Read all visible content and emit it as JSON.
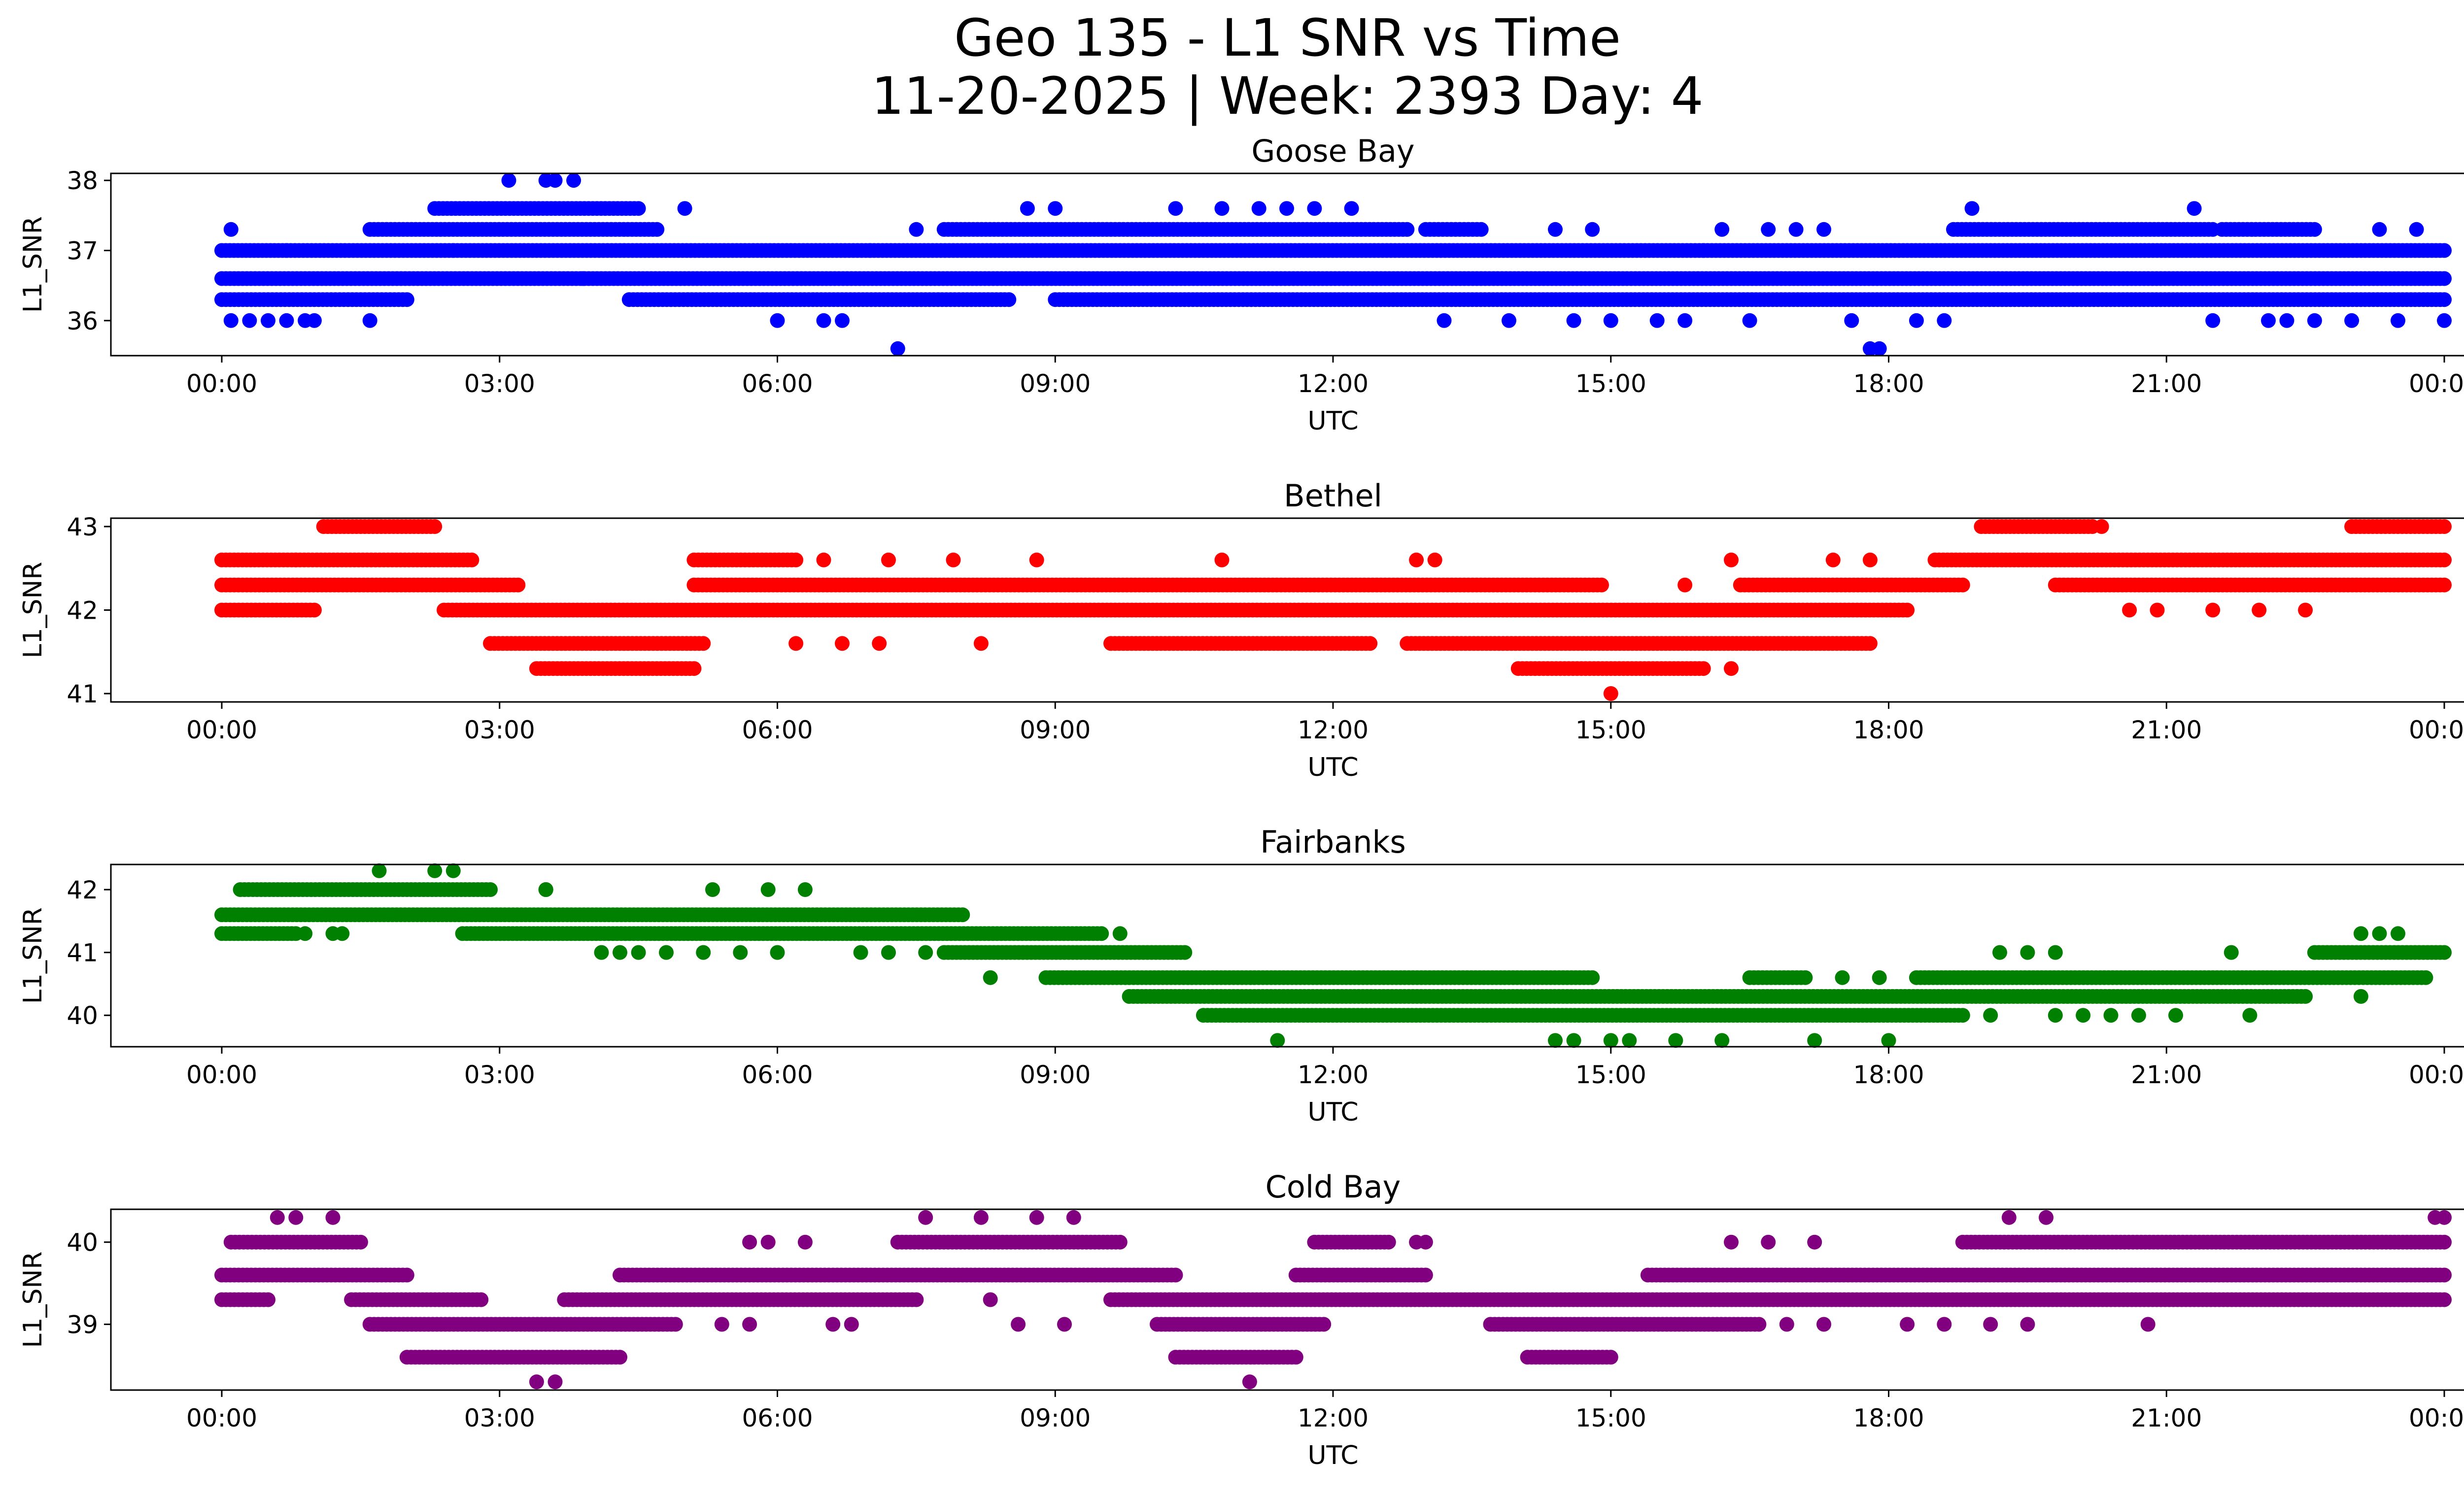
{
  "chart_data": {
    "type": "scatter",
    "title_line1": "Geo 135 - L1 SNR vs Time",
    "title_line2": "11-20-2025 | Week: 2393 Day: 4",
    "xlabel": "UTC",
    "ylabel": "L1_SNR",
    "x_range_hours": [
      0,
      24
    ],
    "x_ticks_hours": [
      0,
      3,
      6,
      9,
      12,
      15,
      18,
      21,
      24
    ],
    "x_tick_labels": [
      "00:00",
      "03:00",
      "06:00",
      "09:00",
      "12:00",
      "15:00",
      "18:00",
      "21:00",
      "00:00"
    ],
    "panels": [
      {
        "name": "Goose Bay",
        "color": "#0000ff",
        "ylim": [
          35.5,
          38.1
        ],
        "y_ticks": [
          36,
          37,
          38
        ],
        "y_tick_labels": [
          "36",
          "37",
          "38"
        ],
        "bands": [
          {
            "y": 37.0,
            "ranges": [
              [
                0.0,
                0.7
              ],
              [
                0.7,
                2.5
              ],
              [
                2.5,
                7.0
              ],
              [
                7.0,
                16.0
              ],
              [
                16.0,
                24.0
              ]
            ]
          },
          {
            "y": 36.6,
            "ranges": [
              [
                0.0,
                24.0
              ]
            ]
          },
          {
            "y": 36.3,
            "ranges": [
              [
                0.0,
                2.0
              ],
              [
                4.4,
                8.5
              ],
              [
                9.0,
                24.0
              ]
            ]
          },
          {
            "y": 37.3,
            "ranges": [
              [
                1.6,
                4.7
              ],
              [
                7.8,
                12.8
              ],
              [
                13.0,
                13.6
              ],
              [
                18.7,
                21.5
              ],
              [
                21.6,
                22.6
              ]
            ]
          },
          {
            "y": 37.6,
            "ranges": [
              [
                2.3,
                4.5
              ]
            ]
          }
        ],
        "points": [
          {
            "x": 0.1,
            "y": 36.0
          },
          {
            "x": 0.3,
            "y": 36.0
          },
          {
            "x": 0.5,
            "y": 36.0
          },
          {
            "x": 0.7,
            "y": 36.0
          },
          {
            "x": 0.9,
            "y": 36.0
          },
          {
            "x": 1.0,
            "y": 36.0
          },
          {
            "x": 1.6,
            "y": 36.0
          },
          {
            "x": 0.1,
            "y": 37.3
          },
          {
            "x": 3.1,
            "y": 38.0
          },
          {
            "x": 3.5,
            "y": 38.0
          },
          {
            "x": 3.6,
            "y": 38.0
          },
          {
            "x": 3.8,
            "y": 38.0
          },
          {
            "x": 3.9,
            "y": 36.6
          },
          {
            "x": 5.0,
            "y": 37.6
          },
          {
            "x": 6.0,
            "y": 36.0
          },
          {
            "x": 6.5,
            "y": 36.0
          },
          {
            "x": 6.7,
            "y": 36.0
          },
          {
            "x": 7.3,
            "y": 35.6
          },
          {
            "x": 7.5,
            "y": 37.3
          },
          {
            "x": 8.7,
            "y": 37.6
          },
          {
            "x": 9.0,
            "y": 37.6
          },
          {
            "x": 10.3,
            "y": 37.6
          },
          {
            "x": 10.8,
            "y": 37.6
          },
          {
            "x": 11.2,
            "y": 37.6
          },
          {
            "x": 11.5,
            "y": 37.6
          },
          {
            "x": 11.8,
            "y": 37.6
          },
          {
            "x": 12.2,
            "y": 37.6
          },
          {
            "x": 13.2,
            "y": 36.0
          },
          {
            "x": 13.9,
            "y": 36.0
          },
          {
            "x": 14.4,
            "y": 37.3
          },
          {
            "x": 14.6,
            "y": 36.0
          },
          {
            "x": 14.8,
            "y": 37.3
          },
          {
            "x": 15.0,
            "y": 36.0
          },
          {
            "x": 15.5,
            "y": 36.0
          },
          {
            "x": 15.8,
            "y": 36.0
          },
          {
            "x": 16.2,
            "y": 37.3
          },
          {
            "x": 16.5,
            "y": 36.0
          },
          {
            "x": 16.7,
            "y": 37.3
          },
          {
            "x": 17.0,
            "y": 37.3
          },
          {
            "x": 17.3,
            "y": 37.3
          },
          {
            "x": 17.6,
            "y": 36.0
          },
          {
            "x": 17.8,
            "y": 35.6
          },
          {
            "x": 17.9,
            "y": 35.6
          },
          {
            "x": 18.3,
            "y": 36.0
          },
          {
            "x": 18.6,
            "y": 36.0
          },
          {
            "x": 18.9,
            "y": 37.6
          },
          {
            "x": 21.3,
            "y": 37.6
          },
          {
            "x": 21.5,
            "y": 36.0
          },
          {
            "x": 22.1,
            "y": 36.0
          },
          {
            "x": 22.3,
            "y": 36.0
          },
          {
            "x": 22.6,
            "y": 36.0
          },
          {
            "x": 23.0,
            "y": 36.0
          },
          {
            "x": 23.3,
            "y": 37.3
          },
          {
            "x": 23.5,
            "y": 36.0
          },
          {
            "x": 23.7,
            "y": 37.3
          },
          {
            "x": 24.0,
            "y": 36.0
          }
        ]
      },
      {
        "name": "Bethel",
        "color": "#ff0000",
        "ylim": [
          40.9,
          43.1
        ],
        "y_ticks": [
          41,
          42,
          43
        ],
        "y_tick_labels": [
          "41",
          "42",
          "43"
        ],
        "bands": [
          {
            "y": 42.3,
            "ranges": [
              [
                0.0,
                3.2
              ],
              [
                5.1,
                14.9
              ],
              [
                16.4,
                18.8
              ],
              [
                19.8,
                24.0
              ]
            ]
          },
          {
            "y": 42.0,
            "ranges": [
              [
                0.0,
                1.0
              ],
              [
                2.4,
                18.2
              ]
            ]
          },
          {
            "y": 42.6,
            "ranges": [
              [
                0.0,
                0.8
              ],
              [
                0.8,
                2.7
              ],
              [
                5.1,
                6.2
              ],
              [
                18.5,
                24.0
              ]
            ]
          },
          {
            "y": 43.0,
            "ranges": [
              [
                1.1,
                2.3
              ],
              [
                19.0,
                20.2
              ],
              [
                23.0,
                24.0
              ]
            ]
          },
          {
            "y": 41.6,
            "ranges": [
              [
                2.9,
                5.2
              ],
              [
                9.6,
                12.4
              ],
              [
                12.8,
                17.8
              ]
            ]
          },
          {
            "y": 41.3,
            "ranges": [
              [
                3.4,
                5.1
              ],
              [
                14.0,
                16.0
              ]
            ]
          }
        ],
        "points": [
          {
            "x": 15.0,
            "y": 41.0
          },
          {
            "x": 6.2,
            "y": 41.6
          },
          {
            "x": 6.7,
            "y": 41.6
          },
          {
            "x": 7.1,
            "y": 41.6
          },
          {
            "x": 8.2,
            "y": 41.6
          },
          {
            "x": 6.5,
            "y": 42.6
          },
          {
            "x": 7.2,
            "y": 42.6
          },
          {
            "x": 7.9,
            "y": 42.6
          },
          {
            "x": 8.8,
            "y": 42.6
          },
          {
            "x": 10.8,
            "y": 42.6
          },
          {
            "x": 12.9,
            "y": 42.6
          },
          {
            "x": 13.1,
            "y": 42.6
          },
          {
            "x": 15.8,
            "y": 42.3
          },
          {
            "x": 16.3,
            "y": 42.6
          },
          {
            "x": 16.3,
            "y": 41.3
          },
          {
            "x": 17.4,
            "y": 42.6
          },
          {
            "x": 17.8,
            "y": 42.6
          },
          {
            "x": 20.3,
            "y": 43.0
          },
          {
            "x": 20.6,
            "y": 42.0
          },
          {
            "x": 20.9,
            "y": 42.0
          },
          {
            "x": 21.5,
            "y": 42.0
          },
          {
            "x": 22.0,
            "y": 42.0
          },
          {
            "x": 22.5,
            "y": 42.0
          }
        ]
      },
      {
        "name": "Fairbanks",
        "color": "#008000",
        "ylim": [
          39.5,
          42.4
        ],
        "y_ticks": [
          40,
          41,
          42
        ],
        "y_tick_labels": [
          "40",
          "41",
          "42"
        ],
        "bands": [
          {
            "y": 41.6,
            "ranges": [
              [
                0.0,
                8.0
              ]
            ]
          },
          {
            "y": 41.3,
            "ranges": [
              [
                0.0,
                0.8
              ],
              [
                2.6,
                9.5
              ]
            ]
          },
          {
            "y": 42.0,
            "ranges": [
              [
                0.2,
                2.9
              ],
              [
                3.5,
                3.5
              ]
            ]
          },
          {
            "y": 41.0,
            "ranges": [
              [
                7.8,
                10.4
              ],
              [
                22.6,
                24.0
              ]
            ]
          },
          {
            "y": 40.6,
            "ranges": [
              [
                8.9,
                14.8
              ],
              [
                16.5,
                17.1
              ],
              [
                18.3,
                23.8
              ]
            ]
          },
          {
            "y": 40.3,
            "ranges": [
              [
                9.8,
                22.5
              ]
            ]
          },
          {
            "y": 40.0,
            "ranges": [
              [
                10.6,
                18.8
              ]
            ]
          }
        ],
        "points": [
          {
            "x": 1.7,
            "y": 42.3
          },
          {
            "x": 2.3,
            "y": 42.3
          },
          {
            "x": 2.5,
            "y": 42.3
          },
          {
            "x": 0.9,
            "y": 41.3
          },
          {
            "x": 1.2,
            "y": 41.3
          },
          {
            "x": 1.3,
            "y": 41.3
          },
          {
            "x": 3.5,
            "y": 42.0
          },
          {
            "x": 5.3,
            "y": 42.0
          },
          {
            "x": 5.9,
            "y": 42.0
          },
          {
            "x": 6.3,
            "y": 42.0
          },
          {
            "x": 4.1,
            "y": 41.0
          },
          {
            "x": 4.3,
            "y": 41.0
          },
          {
            "x": 4.5,
            "y": 41.0
          },
          {
            "x": 4.8,
            "y": 41.0
          },
          {
            "x": 5.2,
            "y": 41.0
          },
          {
            "x": 5.6,
            "y": 41.0
          },
          {
            "x": 6.0,
            "y": 41.0
          },
          {
            "x": 6.9,
            "y": 41.0
          },
          {
            "x": 7.2,
            "y": 41.0
          },
          {
            "x": 7.6,
            "y": 41.0
          },
          {
            "x": 8.3,
            "y": 40.6
          },
          {
            "x": 9.7,
            "y": 41.3
          },
          {
            "x": 11.4,
            "y": 39.6
          },
          {
            "x": 14.4,
            "y": 39.6
          },
          {
            "x": 14.6,
            "y": 39.6
          },
          {
            "x": 15.0,
            "y": 39.6
          },
          {
            "x": 15.2,
            "y": 39.6
          },
          {
            "x": 15.7,
            "y": 39.6
          },
          {
            "x": 16.2,
            "y": 39.6
          },
          {
            "x": 17.2,
            "y": 39.6
          },
          {
            "x": 18.0,
            "y": 39.6
          },
          {
            "x": 17.5,
            "y": 40.6
          },
          {
            "x": 17.9,
            "y": 40.6
          },
          {
            "x": 19.2,
            "y": 41.0
          },
          {
            "x": 19.5,
            "y": 41.0
          },
          {
            "x": 19.8,
            "y": 41.0
          },
          {
            "x": 19.1,
            "y": 40.0
          },
          {
            "x": 19.8,
            "y": 40.0
          },
          {
            "x": 20.1,
            "y": 40.0
          },
          {
            "x": 20.4,
            "y": 40.0
          },
          {
            "x": 20.7,
            "y": 40.0
          },
          {
            "x": 21.1,
            "y": 40.0
          },
          {
            "x": 21.7,
            "y": 41.0
          },
          {
            "x": 21.9,
            "y": 40.0
          },
          {
            "x": 23.1,
            "y": 41.3
          },
          {
            "x": 23.1,
            "y": 40.3
          },
          {
            "x": 23.3,
            "y": 41.3
          },
          {
            "x": 23.5,
            "y": 41.3
          }
        ]
      },
      {
        "name": "Cold Bay",
        "color": "#800080",
        "ylim": [
          38.2,
          40.4
        ],
        "y_ticks": [
          39,
          40
        ],
        "y_tick_labels": [
          "39",
          "40"
        ],
        "bands": [
          {
            "y": 39.6,
            "ranges": [
              [
                0.0,
                2.0
              ],
              [
                4.3,
                10.3
              ],
              [
                11.6,
                13.0
              ],
              [
                15.4,
                24.0
              ]
            ]
          },
          {
            "y": 39.3,
            "ranges": [
              [
                0.0,
                0.5
              ],
              [
                1.4,
                2.8
              ],
              [
                3.7,
                7.5
              ],
              [
                9.6,
                24.0
              ]
            ]
          },
          {
            "y": 40.0,
            "ranges": [
              [
                0.1,
                1.5
              ],
              [
                7.3,
                9.7
              ],
              [
                11.8,
                12.6
              ],
              [
                18.8,
                24.0
              ]
            ]
          },
          {
            "y": 39.0,
            "ranges": [
              [
                1.6,
                4.9
              ],
              [
                10.1,
                11.9
              ],
              [
                13.7,
                16.6
              ]
            ]
          },
          {
            "y": 38.6,
            "ranges": [
              [
                2.0,
                4.3
              ],
              [
                10.3,
                11.6
              ],
              [
                14.1,
                15.0
              ]
            ]
          }
        ],
        "points": [
          {
            "x": 0.6,
            "y": 40.3
          },
          {
            "x": 0.8,
            "y": 40.3
          },
          {
            "x": 1.2,
            "y": 40.3
          },
          {
            "x": 3.4,
            "y": 38.3
          },
          {
            "x": 3.6,
            "y": 38.3
          },
          {
            "x": 5.7,
            "y": 40.0
          },
          {
            "x": 5.9,
            "y": 40.0
          },
          {
            "x": 6.3,
            "y": 40.0
          },
          {
            "x": 5.4,
            "y": 39.0
          },
          {
            "x": 5.7,
            "y": 39.0
          },
          {
            "x": 6.6,
            "y": 39.0
          },
          {
            "x": 6.8,
            "y": 39.0
          },
          {
            "x": 7.6,
            "y": 40.3
          },
          {
            "x": 8.2,
            "y": 40.3
          },
          {
            "x": 8.8,
            "y": 40.3
          },
          {
            "x": 9.2,
            "y": 40.3
          },
          {
            "x": 8.3,
            "y": 39.3
          },
          {
            "x": 8.6,
            "y": 39.0
          },
          {
            "x": 9.1,
            "y": 39.0
          },
          {
            "x": 11.1,
            "y": 38.3
          },
          {
            "x": 12.9,
            "y": 40.0
          },
          {
            "x": 13.0,
            "y": 40.0
          },
          {
            "x": 16.3,
            "y": 40.0
          },
          {
            "x": 16.7,
            "y": 40.0
          },
          {
            "x": 17.2,
            "y": 40.0
          },
          {
            "x": 16.9,
            "y": 39.0
          },
          {
            "x": 17.3,
            "y": 39.0
          },
          {
            "x": 18.2,
            "y": 39.0
          },
          {
            "x": 18.6,
            "y": 39.0
          },
          {
            "x": 19.1,
            "y": 39.0
          },
          {
            "x": 19.3,
            "y": 40.3
          },
          {
            "x": 19.7,
            "y": 40.3
          },
          {
            "x": 19.5,
            "y": 39.0
          },
          {
            "x": 20.8,
            "y": 39.0
          },
          {
            "x": 23.9,
            "y": 40.3
          },
          {
            "x": 24.0,
            "y": 40.3
          }
        ]
      }
    ]
  }
}
